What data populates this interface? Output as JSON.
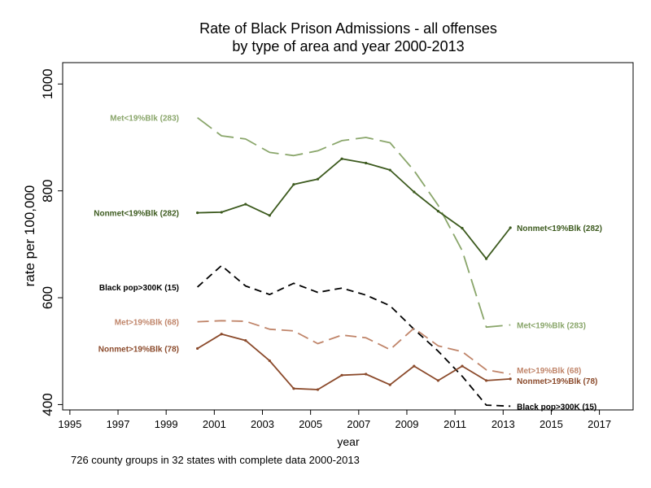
{
  "chart_data": {
    "type": "line",
    "title": "Rate of Black Prison Admissions - all offenses",
    "subtitle": "by type of area and year 2000-2013",
    "xlabel": "year",
    "ylabel": "rate per 100,000",
    "xlim": [
      1994.7,
      2018.4
    ],
    "ylim": [
      390,
      1040
    ],
    "x_ticks": [
      "1995",
      "1997",
      "1999",
      "2001",
      "2003",
      "2005",
      "2007",
      "2009",
      "2011",
      "2013",
      "2015",
      "2017"
    ],
    "y_ticks": [
      "400",
      "600",
      "800",
      "1000"
    ],
    "grid": false,
    "note": "726 county groups in 32 states  with complete data 2000-2013",
    "x": [
      2000.3,
      2001.3,
      2002.3,
      2003.3,
      2004.3,
      2005.3,
      2006.3,
      2007.3,
      2008.3,
      2009.3,
      2010.3,
      2011.3,
      2012.3,
      2013.3
    ],
    "series": [
      {
        "name": "Met<19%Blk (283)",
        "end_label": "Met<19%Blk (283)",
        "color": "#8aa66b",
        "dash": "long",
        "values": [
          937,
          903,
          897,
          872,
          866,
          875,
          894,
          900,
          890,
          838,
          773,
          688,
          545,
          549
        ]
      },
      {
        "name": "Nonmet<19%Blk (282)",
        "end_label": "Nonmet<19%Blk (282)",
        "color": "#3c5a1e",
        "dash": "solid",
        "values": [
          759,
          760,
          775,
          754,
          812,
          822,
          860,
          852,
          839,
          798,
          762,
          730,
          673,
          731
        ]
      },
      {
        "name": "Black pop>300K (15)",
        "end_label": "Black pop>300K (15)",
        "color": "#000000",
        "dash": "short",
        "values": [
          620,
          660,
          622,
          606,
          627,
          610,
          618,
          605,
          585,
          541,
          500,
          453,
          399,
          397
        ]
      },
      {
        "name": "Met>19%Blk (68)",
        "end_label": "Met>19%Blk (68)",
        "color": "#c0856a",
        "dash": "medium",
        "values": [
          555,
          557,
          556,
          541,
          538,
          514,
          530,
          525,
          503,
          543,
          510,
          499,
          465,
          457
        ]
      },
      {
        "name": "Nonmet>19%Blk (78)",
        "end_label": "Nonmet>19%Blk (78)",
        "color": "#8b4a2b",
        "dash": "solid",
        "values": [
          505,
          532,
          520,
          482,
          430,
          428,
          455,
          457,
          437,
          472,
          445,
          472,
          445,
          448
        ]
      }
    ]
  }
}
